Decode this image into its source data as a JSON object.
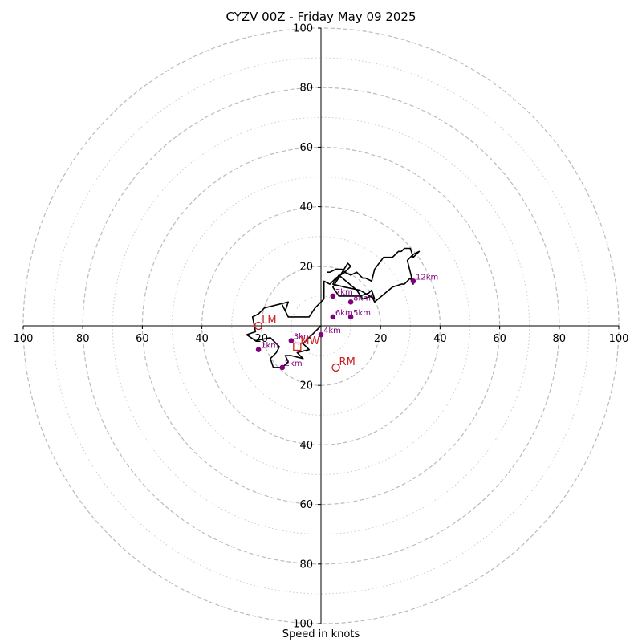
{
  "chart_data": {
    "type": "line",
    "chart_kind": "hodograph",
    "title": "CYZV 00Z - Friday May 09 2025",
    "xlabel": "Speed in knots",
    "ylabel": "",
    "xlim": [
      -100,
      100
    ],
    "ylim": [
      -100,
      100
    ],
    "tick_values": [
      20,
      40,
      60,
      80,
      100
    ],
    "x_tick_labels": [
      "100",
      "80",
      "60",
      "40",
      "20",
      "20",
      "40",
      "60",
      "80",
      "100"
    ],
    "y_tick_labels": [
      "100",
      "80",
      "60",
      "40",
      "20",
      "20",
      "40",
      "60",
      "80",
      "100"
    ],
    "rings": {
      "solid_values": [
        20,
        40,
        60,
        80,
        100
      ],
      "dotted_values": [
        10,
        30,
        50,
        70,
        90
      ]
    },
    "grid": true,
    "colors": {
      "profile_line": "#000000",
      "height_markers": "#800080",
      "storm_motion": "#cc2222",
      "ring_dashed": "#bbbbbb",
      "ring_dotted": "#cccccc"
    },
    "series": [
      {
        "x": [
          0,
          -3,
          -6,
          -4,
          -8,
          -6,
          -10,
          -12,
          -11,
          -13,
          -16,
          -17,
          -15,
          -14,
          -17,
          -22,
          -25,
          -22,
          -23,
          -21,
          -19,
          -11,
          -12,
          -13,
          -11,
          -4,
          -2,
          1,
          1,
          3,
          5,
          8,
          10,
          9,
          4,
          6,
          10,
          13,
          16,
          17,
          18,
          13,
          8,
          4,
          6,
          12,
          14,
          17,
          18,
          24,
          27,
          28,
          30,
          31,
          29,
          31,
          33,
          31,
          30,
          28,
          27,
          26,
          25,
          24,
          21,
          18,
          17,
          15,
          14,
          12,
          10,
          8,
          7,
          5,
          3,
          2
        ],
        "y": [
          0,
          -3,
          -6,
          -8,
          -9,
          -11,
          -10,
          -10,
          -12,
          -14,
          -14,
          -11,
          -9,
          -7,
          -4,
          -5,
          -3,
          -2,
          3,
          4,
          6,
          8,
          5,
          7,
          3,
          3,
          6,
          9,
          15,
          14,
          16,
          18,
          20,
          21,
          13,
          10,
          10,
          10,
          11,
          12,
          9,
          12,
          13,
          14,
          17,
          12,
          9,
          10,
          8,
          13,
          14,
          14,
          16,
          14,
          22,
          24,
          25,
          23,
          26,
          26,
          25,
          25,
          24,
          23,
          23,
          19,
          15,
          16,
          16,
          18,
          17,
          18,
          19,
          19,
          18,
          18
        ]
      }
    ],
    "height_markers": [
      {
        "label": "1km",
        "x": -21,
        "y": -8
      },
      {
        "label": "2km",
        "x": -13,
        "y": -14
      },
      {
        "label": "3km",
        "x": -10,
        "y": -5
      },
      {
        "label": "4km",
        "x": 0,
        "y": -3
      },
      {
        "label": "5km",
        "x": 10,
        "y": 3
      },
      {
        "label": "6km",
        "x": 4,
        "y": 3
      },
      {
        "label": "7km",
        "x": 4,
        "y": 10
      },
      {
        "label": "8km",
        "x": 10,
        "y": 8
      },
      {
        "label": "12km",
        "x": 31,
        "y": 15
      }
    ],
    "storm_motions": [
      {
        "label": "LM",
        "x": -21,
        "y": 0,
        "marker": "circle"
      },
      {
        "label": "RM",
        "x": 5,
        "y": -14,
        "marker": "circle"
      },
      {
        "label": "MW",
        "x": -8,
        "y": -7,
        "marker": "square"
      }
    ]
  }
}
